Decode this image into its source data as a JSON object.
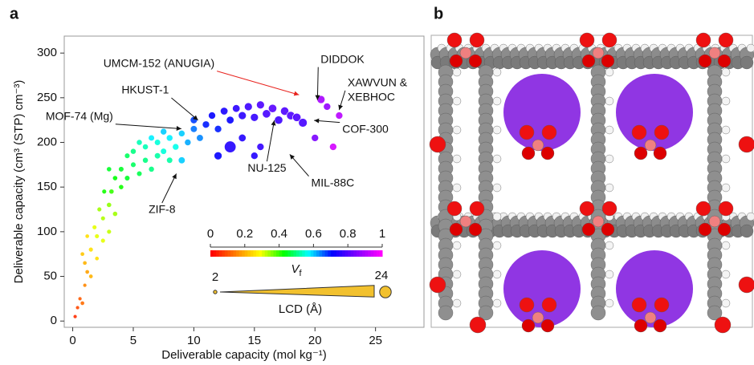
{
  "panel_labels": [
    "a",
    "b"
  ],
  "chart_data": {
    "type": "scatter",
    "x_label": "Deliverable capacity (mol kg⁻¹)",
    "y_label": "Deliverable capacity (cm³ (STP) cm⁻³)",
    "xlim": [
      -0.7,
      29
    ],
    "ylim": [
      -7,
      319
    ],
    "xticks": [
      0,
      5,
      10,
      15,
      20,
      25
    ],
    "yticks": [
      0,
      50,
      100,
      150,
      200,
      250,
      300
    ],
    "colormap": [
      "#ff0000",
      "#ff8000",
      "#ffff00",
      "#00ff00",
      "#00ffff",
      "#0000ff",
      "#8000ff",
      "#ff00ff"
    ],
    "colorbar_label": {
      "main": "V",
      "sub": "f"
    },
    "colorbar_lim": [
      0,
      1
    ],
    "colorbar_ticks": [
      0,
      0.2,
      0.4,
      0.6,
      0.8,
      1
    ],
    "size_label": "LCD (Å)",
    "size_lim": [
      2,
      24
    ],
    "x": [
      0.2,
      0.4,
      0.6,
      0.8,
      1,
      1.2,
      1,
      1.5,
      1.5,
      2,
      2,
      2.5,
      1.8,
      2.5,
      3,
      3,
      2.2,
      1.2,
      0.8,
      3.5,
      3.2,
      2.6,
      4,
      4,
      4.5,
      5,
      5,
      5.5,
      6,
      6,
      6.5,
      7,
      7,
      7.5,
      8,
      8,
      8.5,
      3.5,
      4.5,
      5.5,
      6.5,
      7.5,
      3,
      9,
      9.5,
      10,
      10,
      10.5,
      11,
      11.5,
      12,
      12.5,
      13,
      13.5,
      14,
      14.5,
      15,
      15.5,
      16,
      16.5,
      17,
      17.5,
      18,
      18.5,
      19,
      13,
      12,
      15,
      15.5,
      9,
      14,
      21,
      20.5,
      22,
      21.5,
      20
    ],
    "values": [
      5,
      15,
      25,
      20,
      40,
      55,
      65,
      50,
      80,
      70,
      95,
      90,
      105,
      115,
      100,
      130,
      125,
      95,
      75,
      120,
      145,
      145,
      150,
      170,
      160,
      175,
      190,
      165,
      180,
      195,
      170,
      185,
      200,
      190,
      205,
      180,
      195,
      160,
      185,
      200,
      205,
      212,
      170,
      210,
      200,
      215,
      225,
      205,
      220,
      230,
      215,
      235,
      225,
      238,
      230,
      240,
      228,
      242,
      232,
      238,
      225,
      235,
      230,
      228,
      222,
      195,
      185,
      185,
      195,
      180,
      205,
      240,
      248,
      230,
      195,
      205
    ],
    "vf": [
      0.05,
      0.08,
      0.1,
      0.12,
      0.15,
      0.18,
      0.2,
      0.2,
      0.25,
      0.25,
      0.3,
      0.3,
      0.3,
      0.33,
      0.32,
      0.35,
      0.34,
      0.25,
      0.22,
      0.34,
      0.4,
      0.42,
      0.42,
      0.45,
      0.45,
      0.48,
      0.5,
      0.47,
      0.5,
      0.53,
      0.5,
      0.52,
      0.55,
      0.55,
      0.58,
      0.52,
      0.56,
      0.43,
      0.48,
      0.53,
      0.58,
      0.6,
      0.45,
      0.6,
      0.62,
      0.65,
      0.68,
      0.64,
      0.7,
      0.72,
      0.7,
      0.74,
      0.72,
      0.76,
      0.76,
      0.78,
      0.77,
      0.8,
      0.79,
      0.81,
      0.78,
      0.8,
      0.8,
      0.8,
      0.79,
      0.75,
      0.72,
      0.75,
      0.77,
      0.6,
      0.75,
      0.88,
      0.9,
      0.92,
      0.95,
      0.85
    ],
    "lcd": [
      3,
      3,
      3,
      4,
      3,
      4,
      4,
      4,
      5,
      4,
      5,
      5,
      5,
      5,
      5,
      6,
      5,
      4,
      4,
      6,
      6,
      5,
      6,
      7,
      7,
      7,
      8,
      7,
      8,
      8,
      8,
      9,
      9,
      9,
      10,
      9,
      10,
      6,
      7,
      8,
      9,
      10,
      6,
      10,
      10,
      11,
      12,
      11,
      12,
      12,
      12,
      13,
      13,
      13,
      14,
      14,
      14,
      14,
      15,
      15,
      15,
      15,
      15,
      15,
      16,
      24,
      14,
      12,
      12,
      11,
      13,
      12,
      14,
      12,
      12,
      12
    ],
    "annotations": [
      {
        "text": "UMCM-152 (ANUGIA)",
        "x": 19,
        "y": 252,
        "color": "#e8231e"
      },
      {
        "text": "DIDDOK",
        "x": 20.2,
        "y": 243,
        "color": "#111111"
      },
      {
        "text": "XAWVUN &",
        "x": 21.9,
        "y": 232,
        "color": "#111111"
      },
      {
        "text": "XEBHOC",
        "x": 21.9,
        "y": 232,
        "color": "#111111"
      },
      {
        "text": "HKUST-1",
        "x": 10.6,
        "y": 222,
        "color": "#111111"
      },
      {
        "text": "MOF-74 (Mg)",
        "x": 9.3,
        "y": 215,
        "color": "#111111"
      },
      {
        "text": "COF-300",
        "x": 19.6,
        "y": 225,
        "color": "#111111"
      },
      {
        "text": "MIL-88C",
        "x": 17.7,
        "y": 190,
        "color": "#111111"
      },
      {
        "text": "NU-125",
        "x": 16.7,
        "y": 229,
        "color": "#111111"
      },
      {
        "text": "ZIF-8",
        "x": 8.7,
        "y": 169,
        "color": "#111111"
      }
    ]
  }
}
